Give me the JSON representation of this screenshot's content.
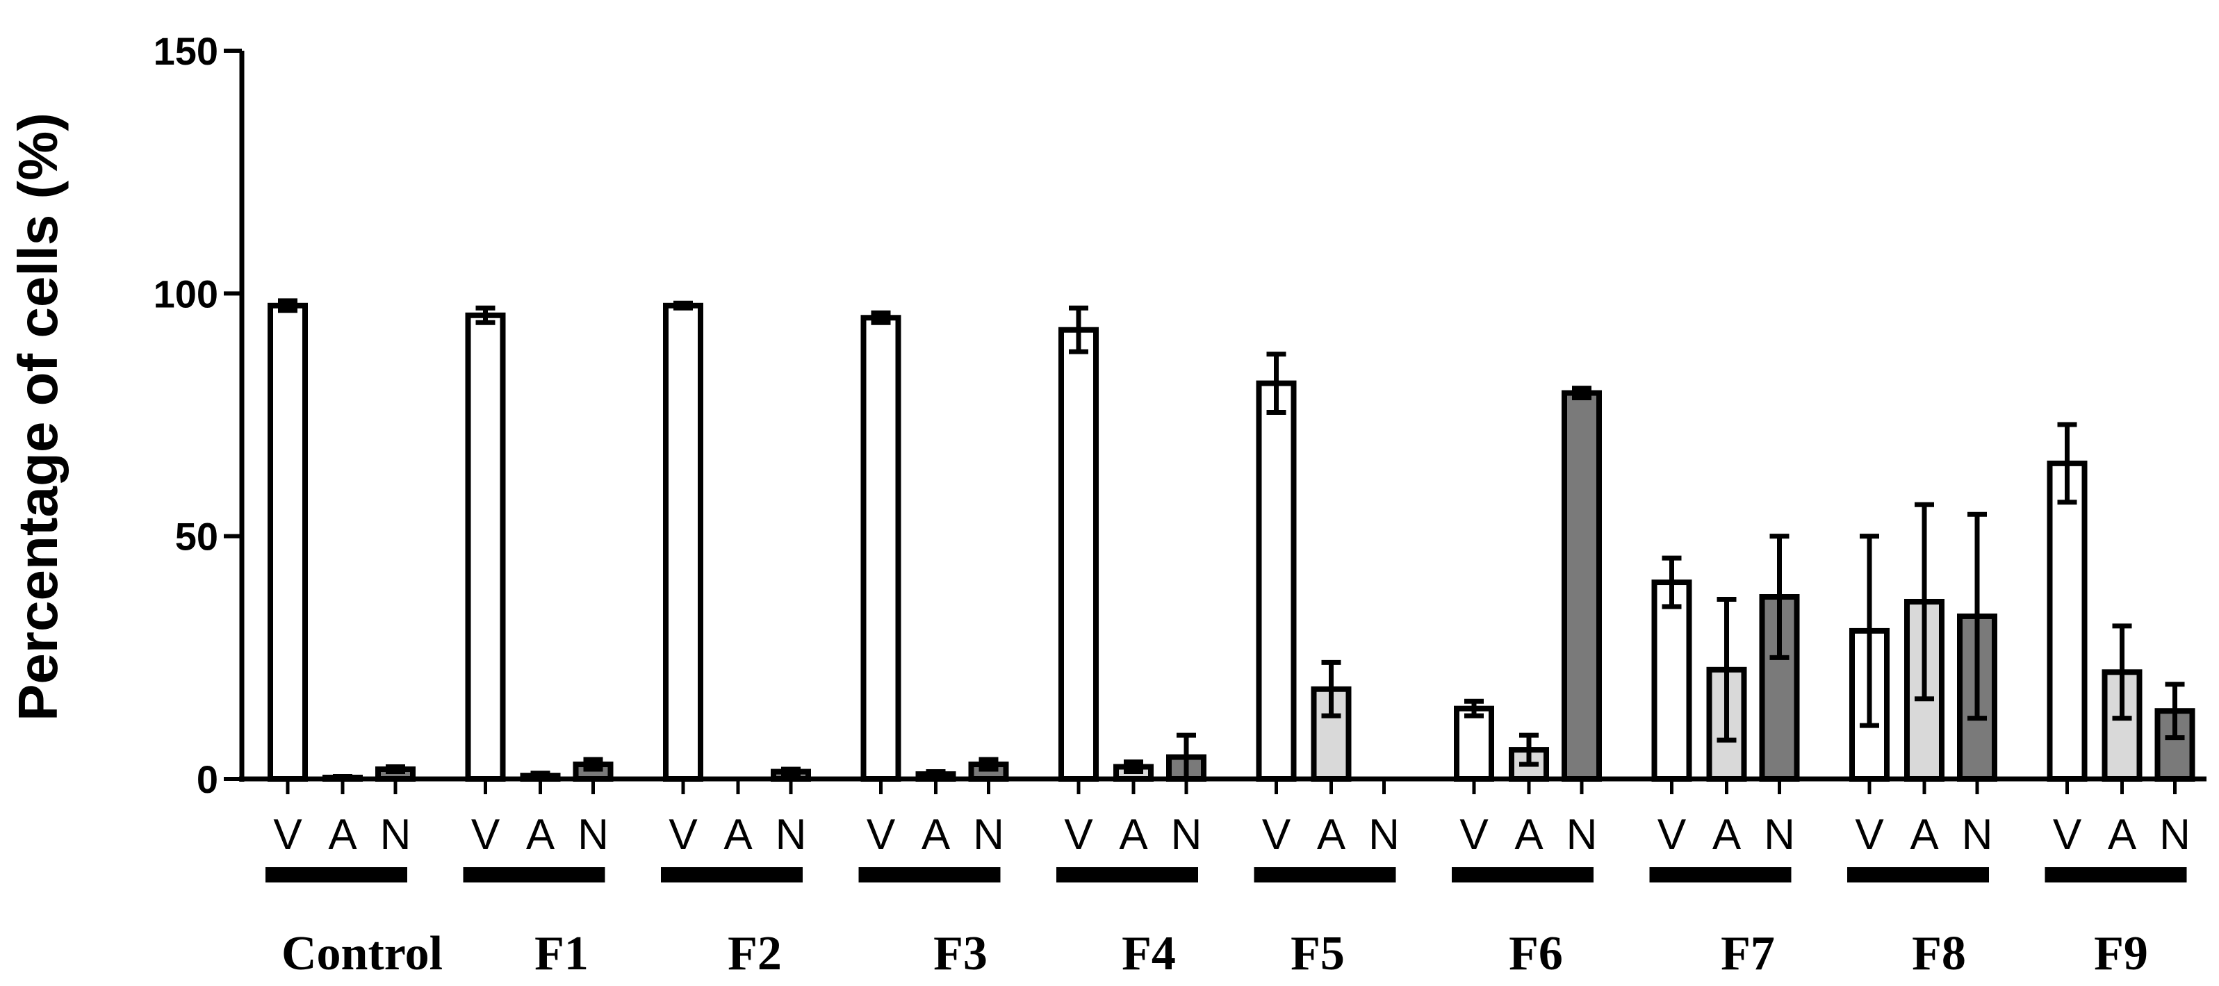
{
  "chart_data": {
    "type": "bar",
    "ylabel": "Percentage of cells (%)",
    "xlabel": "",
    "ylim": [
      0,
      150
    ],
    "yticks": [
      0,
      50,
      100,
      150
    ],
    "grid": false,
    "legend": "none",
    "categories": [
      "Control",
      "F1",
      "F2",
      "F3",
      "F4",
      "F5",
      "F6",
      "F7",
      "F8",
      "F9"
    ],
    "subcategories": [
      "V",
      "A",
      "N"
    ],
    "series": [
      {
        "name": "V",
        "color": "#ffffff",
        "values": [
          97.5,
          95.5,
          97.5,
          95,
          92.5,
          81.5,
          14.5,
          40.5,
          30.5,
          65
        ],
        "errors": [
          1,
          1.5,
          0.5,
          1,
          4.5,
          6,
          1.5,
          5,
          19.5,
          8
        ]
      },
      {
        "name": "A",
        "color": "#d9d9d9",
        "values": [
          0.3,
          0.7,
          0,
          1,
          2.5,
          18.5,
          6,
          22.5,
          36.5,
          22
        ],
        "errors": [
          0.2,
          0.5,
          0,
          0.5,
          1,
          5.5,
          3,
          14.5,
          20,
          9.5
        ]
      },
      {
        "name": "N",
        "color": "#7a7a7a",
        "values": [
          2,
          3,
          1.5,
          3,
          4.5,
          0,
          79.5,
          37.5,
          33.5,
          14
        ],
        "errors": [
          0.5,
          1,
          0.5,
          1,
          4.5,
          0,
          1,
          12.5,
          21,
          5.5
        ]
      }
    ]
  }
}
